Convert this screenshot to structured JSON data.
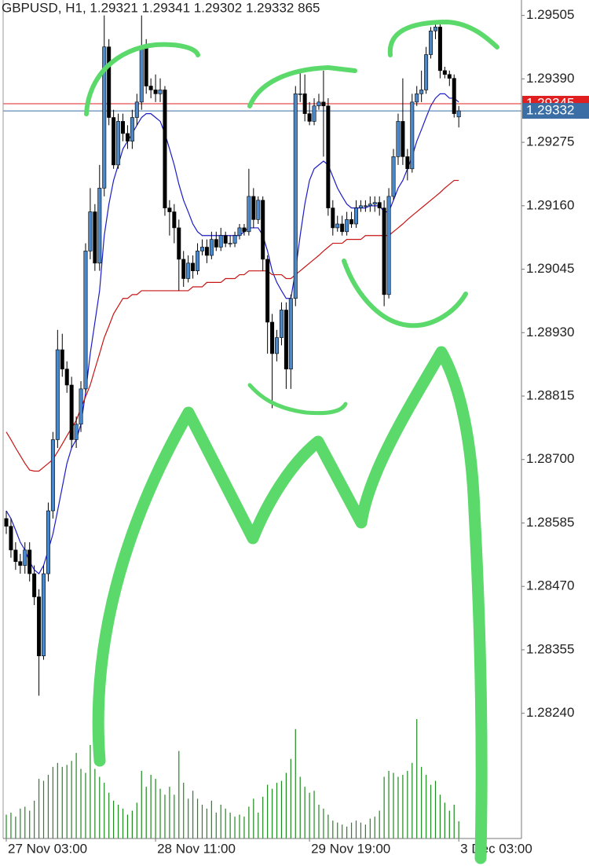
{
  "chart_data": {
    "type": "candlestick",
    "title": "GBPUSD, H1, 1.29321 1.29341 1.29302 1.29332 865",
    "categories": [
      "27 Nov 03:00",
      null,
      null,
      null,
      null,
      null,
      null,
      null,
      null,
      null,
      null,
      null,
      null,
      null,
      null,
      null,
      null,
      null,
      null,
      null,
      null,
      null,
      null,
      null,
      null,
      null,
      null,
      null,
      null,
      null,
      null,
      null,
      "28 Nov 11:00",
      null,
      null,
      null,
      null,
      null,
      null,
      null,
      null,
      null,
      null,
      null,
      null,
      null,
      null,
      null,
      null,
      null,
      null,
      null,
      null,
      null,
      null,
      null,
      null,
      null,
      null,
      null,
      null,
      null,
      null,
      null,
      null,
      "29 Nov 19:00",
      null,
      null,
      null,
      null,
      null,
      null,
      null,
      null,
      null,
      null,
      null,
      null,
      null,
      null,
      null,
      null,
      null,
      null,
      null,
      null,
      null,
      null,
      null,
      null,
      null,
      null,
      null,
      null,
      null,
      null,
      null,
      "3 Dec 03:00"
    ],
    "open": [
      1.28593,
      1.28579,
      1.28536,
      1.28515,
      1.28508,
      1.28536,
      1.28493,
      1.28451,
      1.28344,
      1.28493,
      1.28607,
      1.28736,
      1.28899,
      1.28864,
      1.28835,
      1.28736,
      1.28764,
      1.28828,
      1.29078,
      1.29149,
      1.29056,
      1.29192,
      1.29448,
      1.2932,
      1.29234,
      1.29313,
      1.29291,
      1.29277,
      1.2932,
      1.29348,
      1.29448,
      1.29377,
      1.2937,
      1.29363,
      1.2937,
      1.29156,
      1.29149,
      1.2912,
      1.29063,
      1.29028,
      1.29056,
      1.29042,
      1.29078,
      1.29085,
      1.2907,
      1.29099,
      1.29085,
      1.29106,
      1.29092,
      1.29092,
      1.29106,
      1.2912,
      1.29113,
      1.29177,
      1.29135,
      1.2917,
      1.29063,
      1.28949,
      1.28892,
      1.28921,
      1.28971,
      1.28864,
      1.28992,
      1.29363,
      1.29363,
      1.29327,
      1.29313,
      1.29341,
      1.29348,
      1.29341,
      1.29156,
      1.2912,
      1.29127,
      1.29113,
      1.29135,
      1.29127,
      1.29156,
      1.2916,
      1.2916,
      1.29163,
      1.29166,
      1.29156,
      1.28999,
      1.29177,
      1.29249,
      1.29313,
      1.29249,
      1.29227,
      1.29348,
      1.29363,
      1.2937,
      1.29434,
      1.29477,
      1.29484,
      1.29405,
      1.29398,
      1.29391,
      1.29321
    ],
    "high": [
      1.28607,
      1.28593,
      1.2855,
      1.28529,
      1.2855,
      1.2855,
      1.28508,
      1.28465,
      1.28508,
      1.28622,
      1.2875,
      1.28935,
      1.28928,
      1.28878,
      1.2885,
      1.28778,
      1.28842,
      1.29092,
      1.29192,
      1.29163,
      1.29234,
      1.29505,
      1.29462,
      1.29334,
      1.29327,
      1.29327,
      1.29306,
      1.29334,
      1.29363,
      1.29505,
      1.29462,
      1.29391,
      1.29398,
      1.29391,
      1.29377,
      1.2917,
      1.29163,
      1.29135,
      1.29078,
      1.2907,
      1.2907,
      1.29092,
      1.29099,
      1.29099,
      1.29113,
      1.29113,
      1.2912,
      1.29113,
      1.29106,
      1.29113,
      1.29127,
      1.29127,
      1.29227,
      1.29192,
      1.29177,
      1.29177,
      1.2907,
      1.28964,
      1.28935,
      1.28985,
      1.28985,
      1.28999,
      1.29377,
      1.29405,
      1.29398,
      1.29348,
      1.29355,
      1.29363,
      1.29405,
      1.29355,
      1.2917,
      1.29142,
      1.29142,
      1.29149,
      1.29149,
      1.2917,
      1.2917,
      1.2917,
      1.29177,
      1.29177,
      1.29177,
      1.2917,
      1.29192,
      1.29263,
      1.29327,
      1.29391,
      1.29263,
      1.29363,
      1.29377,
      1.29405,
      1.29448,
      1.29484,
      1.29491,
      1.29491,
      1.29412,
      1.29405,
      1.29398,
      1.29341
    ],
    "low": [
      1.28565,
      1.28522,
      1.285,
      1.28493,
      1.28493,
      1.28479,
      1.28436,
      1.28272,
      1.28337,
      1.28479,
      1.28593,
      1.28721,
      1.2885,
      1.28821,
      1.28721,
      1.28721,
      1.2875,
      1.28821,
      1.29063,
      1.29042,
      1.29042,
      1.29177,
      1.29306,
      1.29227,
      1.29227,
      1.29277,
      1.29263,
      1.29263,
      1.29306,
      1.29334,
      1.29363,
      1.29355,
      1.29348,
      1.29348,
      1.29142,
      1.29106,
      1.29092,
      1.29006,
      1.29013,
      1.29021,
      1.29028,
      1.29035,
      1.2907,
      1.29056,
      1.29063,
      1.29078,
      1.29078,
      1.29085,
      1.29085,
      1.29085,
      1.29099,
      1.29106,
      1.29106,
      1.2912,
      1.29127,
      1.29042,
      1.28892,
      1.28793,
      1.28878,
      1.28907,
      1.28828,
      1.28828,
      1.28978,
      1.29348,
      1.29313,
      1.29306,
      1.29306,
      1.29334,
      1.29249,
      1.29142,
      1.29106,
      1.29113,
      1.29106,
      1.29106,
      1.2912,
      1.2912,
      1.29149,
      1.29149,
      1.29149,
      1.29149,
      1.29142,
      1.28978,
      1.28992,
      1.2917,
      1.29234,
      1.29234,
      1.29206,
      1.2922,
      1.29341,
      1.29348,
      1.29363,
      1.29427,
      1.29462,
      1.29391,
      1.29391,
      1.29377,
      1.2932,
      1.29302
    ],
    "close": [
      1.28579,
      1.28536,
      1.28515,
      1.28508,
      1.28536,
      1.28493,
      1.28451,
      1.28344,
      1.28493,
      1.28607,
      1.28736,
      1.28899,
      1.28864,
      1.28835,
      1.28736,
      1.28764,
      1.28828,
      1.29078,
      1.29149,
      1.29056,
      1.29192,
      1.29448,
      1.2932,
      1.29234,
      1.29313,
      1.29291,
      1.29277,
      1.2932,
      1.29348,
      1.29448,
      1.29377,
      1.2937,
      1.29363,
      1.2937,
      1.29156,
      1.29149,
      1.2912,
      1.29063,
      1.29028,
      1.29056,
      1.29042,
      1.29078,
      1.29085,
      1.2907,
      1.29099,
      1.29085,
      1.29106,
      1.29092,
      1.29092,
      1.29106,
      1.2912,
      1.29113,
      1.29177,
      1.29135,
      1.2917,
      1.29063,
      1.28949,
      1.28892,
      1.28921,
      1.28971,
      1.28864,
      1.28992,
      1.29363,
      1.29363,
      1.29327,
      1.29313,
      1.29341,
      1.29348,
      1.29341,
      1.29156,
      1.2912,
      1.29127,
      1.29113,
      1.29135,
      1.29127,
      1.29156,
      1.2916,
      1.2916,
      1.29163,
      1.29166,
      1.29156,
      1.28999,
      1.29177,
      1.29249,
      1.29313,
      1.29249,
      1.29227,
      1.29348,
      1.29363,
      1.2937,
      1.29434,
      1.29477,
      1.29484,
      1.29405,
      1.29398,
      1.29391,
      1.29327,
      1.29332
    ],
    "volume": [
      1200,
      1300,
      1100,
      1500,
      1600,
      1400,
      1900,
      3000,
      2900,
      3200,
      3600,
      3800,
      3600,
      3700,
      3900,
      4300,
      3500,
      3300,
      4700,
      3500,
      3100,
      2800,
      2300,
      1900,
      1700,
      1500,
      1200,
      1400,
      1800,
      3400,
      2600,
      3200,
      3000,
      2500,
      2200,
      2600,
      2200,
      4400,
      2800,
      2000,
      2400,
      2000,
      1700,
      1500,
      1900,
      1300,
      1700,
      1500,
      1300,
      1100,
      1200,
      1100,
      1600,
      2000,
      1300,
      2100,
      2700,
      2500,
      2800,
      2900,
      3300,
      4000,
      5500,
      3100,
      2600,
      2300,
      2400,
      1700,
      1500,
      1200,
      900,
      800,
      700,
      600,
      800,
      900,
      800,
      700,
      1000,
      1100,
      1400,
      3100,
      3400,
      3300,
      3100,
      3200,
      3400,
      3800,
      6000,
      3600,
      3200,
      2700,
      2900,
      2200,
      1800,
      1400,
      1700,
      865
    ],
    "volume_lim": [
      0,
      6200
    ],
    "up_color": "#4a88cc",
    "down_color": "#000000",
    "volume_color": "#1f8a1f",
    "ylim": [
      1.28013,
      1.29533
    ],
    "yticks": [
      1.29505,
      {
        "value": 1.2939,
        "label": "1.29390"
      },
      1.29275,
      {
        "value": 1.2916,
        "label": "1.29160"
      },
      1.29045,
      {
        "value": 1.2893,
        "label": "1.28930"
      },
      1.28815,
      {
        "value": 1.287,
        "label": "1.28700"
      },
      1.28585,
      {
        "value": 1.2847,
        "label": "1.28470"
      },
      1.28355,
      {
        "value": 1.2824,
        "label": "1.28240"
      }
    ],
    "price_lines": [
      {
        "value": 1.29345,
        "color": "#e02020"
      },
      {
        "value": 1.29332,
        "color": "#3a6ea5"
      }
    ],
    "series": [
      {
        "color": "#1c1cc8",
        "values": [
          1.28607,
          1.28593,
          1.28572,
          1.2855,
          1.28536,
          1.28515,
          1.285,
          1.28493,
          1.28508,
          1.28536,
          1.28565,
          1.28607,
          1.2865,
          1.28693,
          1.28721,
          1.28736,
          1.28764,
          1.28821,
          1.28892,
          1.28949,
          1.29006,
          1.29106,
          1.29163,
          1.29206,
          1.29234,
          1.29263,
          1.29277,
          1.29291,
          1.29306,
          1.2932,
          1.29327,
          1.29327,
          1.2932,
          1.29313,
          1.29291,
          1.29263,
          1.29234,
          1.29199,
          1.2917,
          1.29149,
          1.29127,
          1.29113,
          1.29106,
          1.29106,
          1.29106,
          1.29106,
          1.29106,
          1.29106,
          1.29106,
          1.29106,
          1.29106,
          1.29113,
          1.2912,
          1.2912,
          1.2912,
          1.29106,
          1.29078,
          1.29042,
          1.29021,
          1.29006,
          1.28992,
          1.28992,
          1.29042,
          1.29106,
          1.29163,
          1.29206,
          1.29227,
          1.29234,
          1.29241,
          1.29234,
          1.29213,
          1.29192,
          1.29177,
          1.29163,
          1.29156,
          1.29156,
          1.29156,
          1.29156,
          1.2916,
          1.2916,
          1.2916,
          1.29149,
          1.29149,
          1.2917,
          1.29192,
          1.29206,
          1.29227,
          1.29249,
          1.29277,
          1.29298,
          1.2932,
          1.29341,
          1.29355,
          1.29363,
          1.29363,
          1.29355,
          1.29355,
          1.29348
        ]
      },
      {
        "color": "#c81414",
        "values": [
          1.2875,
          1.28736,
          1.28721,
          1.28707,
          1.28693,
          1.28681,
          1.28679,
          1.28679,
          1.28686,
          1.28693,
          1.287,
          1.28714,
          1.28728,
          1.28743,
          1.28757,
          1.28771,
          1.28793,
          1.28814,
          1.28835,
          1.28864,
          1.28892,
          1.28921,
          1.28942,
          1.28964,
          1.28978,
          1.28992,
          1.28992,
          1.28999,
          1.28999,
          1.29006,
          1.29006,
          1.29006,
          1.29006,
          1.29006,
          1.29006,
          1.29006,
          1.29006,
          1.29006,
          1.29006,
          1.29006,
          1.29013,
          1.29013,
          1.29013,
          1.29021,
          1.29021,
          1.29021,
          1.29021,
          1.29028,
          1.29028,
          1.29028,
          1.29035,
          1.29035,
          1.29042,
          1.29042,
          1.29042,
          1.29042,
          1.29042,
          1.29035,
          1.29035,
          1.29035,
          1.29028,
          1.29028,
          1.29035,
          1.29042,
          1.29049,
          1.29056,
          1.29063,
          1.2907,
          1.29078,
          1.29085,
          1.29092,
          1.29092,
          1.29092,
          1.29099,
          1.29099,
          1.29099,
          1.29099,
          1.29106,
          1.29106,
          1.29106,
          1.29106,
          1.29106,
          1.29106,
          1.29113,
          1.2912,
          1.29127,
          1.29135,
          1.29142,
          1.29149,
          1.29156,
          1.29163,
          1.2917,
          1.29177,
          1.29184,
          1.29192,
          1.29199,
          1.29206,
          1.29206
        ]
      }
    ]
  }
}
